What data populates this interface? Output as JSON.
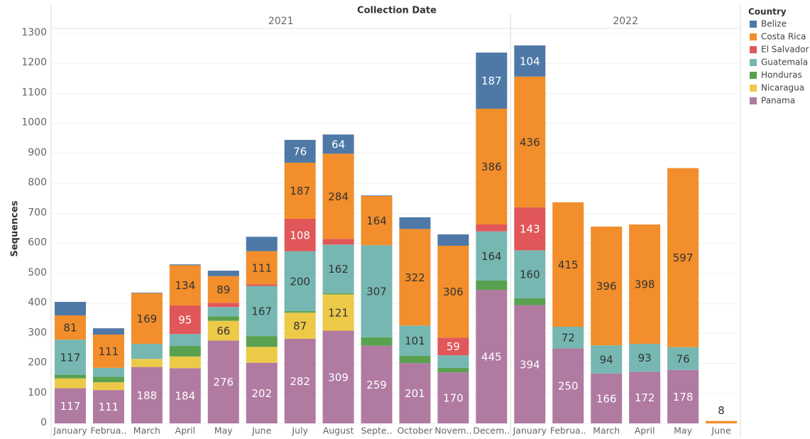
{
  "chart_data": {
    "type": "stacked-bar",
    "title": "Collection Date",
    "y_label": "Sequences",
    "legend_title": "Country",
    "x_groups": [
      {
        "label": "2021",
        "size": 12
      },
      {
        "label": "2022",
        "size": 6
      }
    ],
    "categories": [
      "January",
      "Februa..",
      "March",
      "April",
      "May",
      "June",
      "July",
      "August",
      "Septe..",
      "October",
      "Novem..",
      "Decem..",
      "January",
      "Februa..",
      "March",
      "April",
      "May",
      "June"
    ],
    "series": [
      {
        "name": "Belize",
        "color": "#4e79a7",
        "values": [
          45,
          21,
          2,
          3,
          18,
          48,
          76,
          64,
          2,
          39,
          38,
          187,
          104,
          0,
          0,
          0,
          0,
          0
        ]
      },
      {
        "name": "Costa Rica",
        "color": "#f28e2b",
        "values": [
          81,
          111,
          169,
          134,
          89,
          111,
          187,
          284,
          164,
          322,
          306,
          386,
          436,
          415,
          396,
          398,
          597,
          8
        ]
      },
      {
        "name": "El Salvador",
        "color": "#e15759",
        "values": [
          0,
          0,
          0,
          95,
          14,
          5,
          108,
          19,
          0,
          0,
          59,
          23,
          143,
          0,
          0,
          0,
          0,
          0
        ]
      },
      {
        "name": "Guatemala",
        "color": "#76b7b2",
        "values": [
          117,
          30,
          50,
          40,
          31,
          167,
          200,
          162,
          307,
          101,
          42,
          164,
          160,
          72,
          94,
          93,
          76,
          0
        ]
      },
      {
        "name": "Honduras",
        "color": "#59a14f",
        "values": [
          12,
          18,
          0,
          35,
          15,
          36,
          5,
          4,
          28,
          24,
          15,
          31,
          23,
          0,
          0,
          0,
          0,
          0
        ]
      },
      {
        "name": "Nicaragua",
        "color": "#edc948",
        "values": [
          33,
          26,
          27,
          39,
          66,
          53,
          87,
          121,
          0,
          0,
          0,
          0,
          0,
          0,
          0,
          0,
          0,
          0
        ]
      },
      {
        "name": "Panama",
        "color": "#b07aa1",
        "values": [
          117,
          111,
          188,
          184,
          276,
          202,
          282,
          309,
          259,
          201,
          170,
          445,
          394,
          250,
          166,
          172,
          178,
          0
        ]
      }
    ],
    "ylim": [
      0,
      1300
    ],
    "yticks": [
      0,
      100,
      200,
      300,
      400,
      500,
      600,
      700,
      800,
      900,
      1000,
      1100,
      1200,
      1300
    ],
    "grid": true
  }
}
